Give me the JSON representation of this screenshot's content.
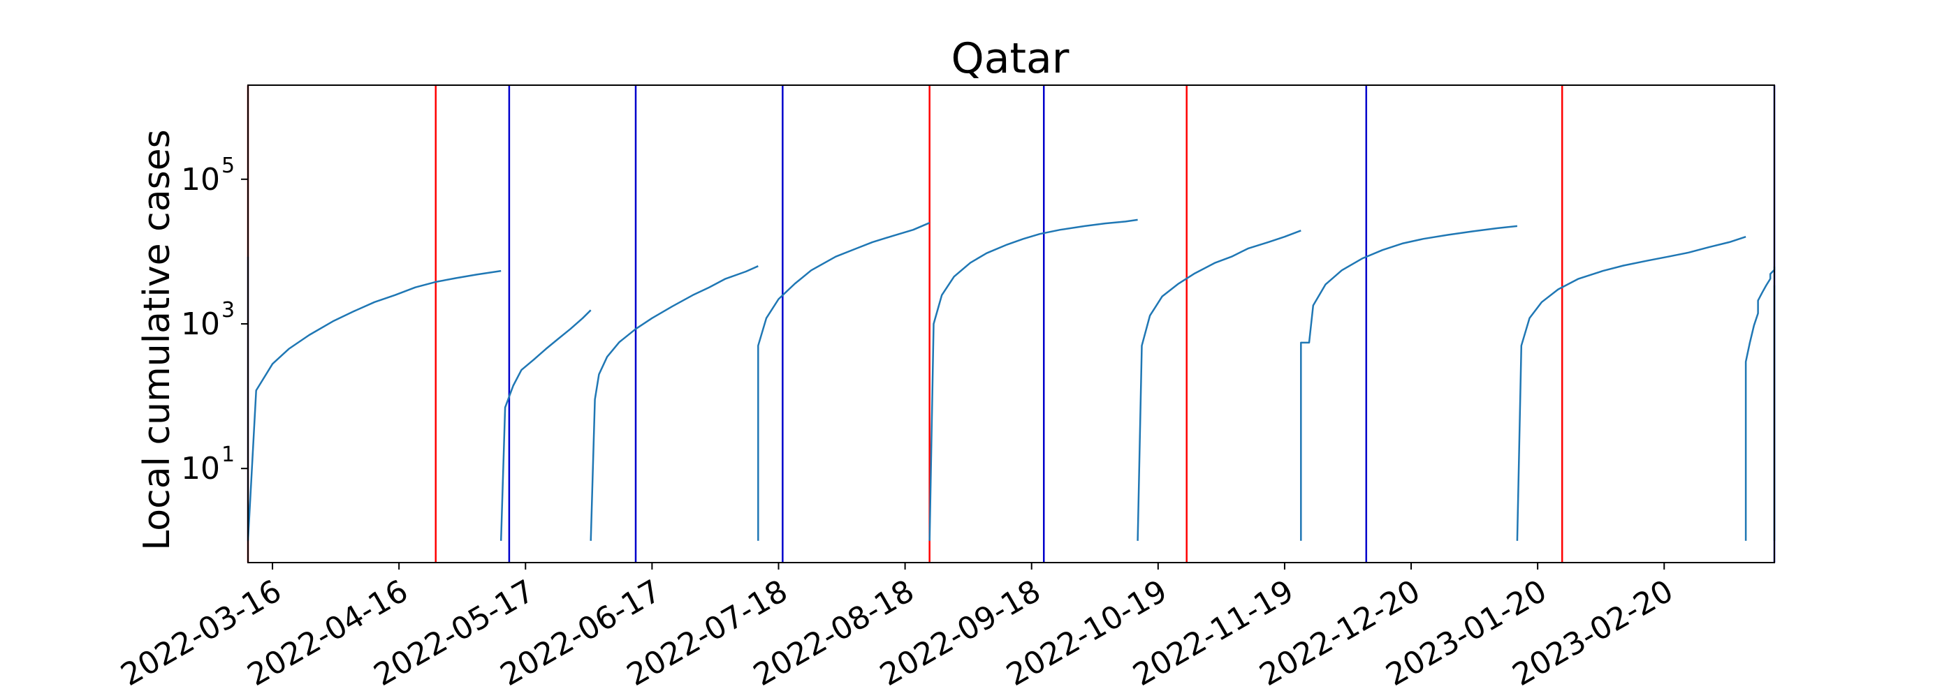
{
  "chart_data": {
    "type": "line",
    "title": "Qatar",
    "xlabel": "",
    "ylabel": "Local cumulative cases",
    "yscale": "log",
    "ylim": [
      0.5,
      2000000
    ],
    "xlim": [
      "2022-03-10",
      "2023-03-19"
    ],
    "xticks": [
      "2022-03-16",
      "2022-04-16",
      "2022-05-17",
      "2022-06-17",
      "2022-07-18",
      "2022-08-18",
      "2022-09-18",
      "2022-10-19",
      "2022-11-19",
      "2022-12-20",
      "2023-01-20",
      "2023-02-20"
    ],
    "yticks": [
      {
        "value": 10,
        "base": "10",
        "exp": "1"
      },
      {
        "value": 1000,
        "base": "10",
        "exp": "3"
      },
      {
        "value": 100000,
        "base": "10",
        "exp": "5"
      }
    ],
    "grid": false,
    "colors": {
      "series": "#1f77b4",
      "red_marker": "#ff0000",
      "blue_marker": "#0000cc",
      "frame": "#000000"
    },
    "vertical_markers": [
      {
        "date": "2022-03-10",
        "color": "red"
      },
      {
        "date": "2022-04-25",
        "color": "red"
      },
      {
        "date": "2022-05-13",
        "color": "blue"
      },
      {
        "date": "2022-06-13",
        "color": "blue"
      },
      {
        "date": "2022-07-19",
        "color": "blue"
      },
      {
        "date": "2022-08-24",
        "color": "red"
      },
      {
        "date": "2022-09-21",
        "color": "blue"
      },
      {
        "date": "2022-10-26",
        "color": "red"
      },
      {
        "date": "2022-12-09",
        "color": "blue"
      },
      {
        "date": "2023-01-26",
        "color": "red"
      },
      {
        "date": "2023-03-19",
        "color": "blue"
      }
    ],
    "series": [
      {
        "points": [
          [
            "2022-03-10",
            8500
          ],
          [
            "2022-03-10",
            1
          ],
          [
            "2022-03-12",
            120
          ],
          [
            "2022-03-16",
            280
          ],
          [
            "2022-03-20",
            450
          ],
          [
            "2022-03-25",
            700
          ],
          [
            "2022-03-31",
            1100
          ],
          [
            "2022-04-05",
            1500
          ],
          [
            "2022-04-10",
            2000
          ],
          [
            "2022-04-15",
            2500
          ],
          [
            "2022-04-20",
            3200
          ],
          [
            "2022-04-25",
            3800
          ],
          [
            "2022-04-30",
            4300
          ],
          [
            "2022-05-05",
            4800
          ],
          [
            "2022-05-11",
            5400
          ]
        ]
      },
      {
        "points": [
          [
            "2022-05-11",
            1
          ],
          [
            "2022-05-12",
            70
          ],
          [
            "2022-05-14",
            140
          ],
          [
            "2022-05-16",
            230
          ],
          [
            "2022-05-19",
            320
          ],
          [
            "2022-05-22",
            450
          ],
          [
            "2022-05-25",
            620
          ],
          [
            "2022-05-28",
            850
          ],
          [
            "2022-05-31",
            1200
          ],
          [
            "2022-06-02",
            1550
          ]
        ]
      },
      {
        "points": [
          [
            "2022-06-02",
            1
          ],
          [
            "2022-06-03",
            90
          ],
          [
            "2022-06-04",
            200
          ],
          [
            "2022-06-06",
            350
          ],
          [
            "2022-06-09",
            560
          ],
          [
            "2022-06-13",
            850
          ],
          [
            "2022-06-17",
            1200
          ],
          [
            "2022-06-22",
            1750
          ],
          [
            "2022-06-27",
            2500
          ],
          [
            "2022-07-01",
            3200
          ],
          [
            "2022-07-05",
            4200
          ],
          [
            "2022-07-10",
            5300
          ],
          [
            "2022-07-13",
            6300
          ]
        ]
      },
      {
        "points": [
          [
            "2022-07-13",
            1
          ],
          [
            "2022-07-13",
            500
          ],
          [
            "2022-07-15",
            1200
          ],
          [
            "2022-07-18",
            2200
          ],
          [
            "2022-07-22",
            3600
          ],
          [
            "2022-07-26",
            5500
          ],
          [
            "2022-08-01",
            8500
          ],
          [
            "2022-08-06",
            11000
          ],
          [
            "2022-08-10",
            13500
          ],
          [
            "2022-08-15",
            16500
          ],
          [
            "2022-08-20",
            20000
          ],
          [
            "2022-08-24",
            25000
          ]
        ]
      },
      {
        "points": [
          [
            "2022-08-24",
            1
          ],
          [
            "2022-08-25",
            1000
          ],
          [
            "2022-08-27",
            2500
          ],
          [
            "2022-08-30",
            4500
          ],
          [
            "2022-09-03",
            7000
          ],
          [
            "2022-09-07",
            9500
          ],
          [
            "2022-09-12",
            12500
          ],
          [
            "2022-09-16",
            15000
          ],
          [
            "2022-09-20",
            17500
          ],
          [
            "2022-09-25",
            20000
          ],
          [
            "2022-10-01",
            22500
          ],
          [
            "2022-10-06",
            24500
          ],
          [
            "2022-10-11",
            26000
          ],
          [
            "2022-10-14",
            27500
          ]
        ]
      },
      {
        "points": [
          [
            "2022-10-14",
            1
          ],
          [
            "2022-10-15",
            500
          ],
          [
            "2022-10-17",
            1300
          ],
          [
            "2022-10-20",
            2400
          ],
          [
            "2022-10-24",
            3600
          ],
          [
            "2022-10-28",
            5000
          ],
          [
            "2022-11-02",
            7000
          ],
          [
            "2022-11-06",
            8500
          ],
          [
            "2022-11-10",
            11000
          ],
          [
            "2022-11-15",
            13500
          ],
          [
            "2022-11-19",
            16000
          ],
          [
            "2022-11-23",
            19500
          ]
        ]
      },
      {
        "points": [
          [
            "2022-11-23",
            1
          ],
          [
            "2022-11-23",
            550
          ],
          [
            "2022-11-25",
            550
          ],
          [
            "2022-11-26",
            1800
          ],
          [
            "2022-11-29",
            3500
          ],
          [
            "2022-12-03",
            5500
          ],
          [
            "2022-12-08",
            8000
          ],
          [
            "2022-12-13",
            10500
          ],
          [
            "2022-12-18",
            13000
          ],
          [
            "2022-12-23",
            15000
          ],
          [
            "2022-12-29",
            17000
          ],
          [
            "2023-01-04",
            19000
          ],
          [
            "2023-01-10",
            21000
          ],
          [
            "2023-01-15",
            22500
          ]
        ]
      },
      {
        "points": [
          [
            "2023-01-15",
            1
          ],
          [
            "2023-01-16",
            500
          ],
          [
            "2023-01-18",
            1200
          ],
          [
            "2023-01-21",
            2000
          ],
          [
            "2023-01-25",
            3000
          ],
          [
            "2023-01-30",
            4200
          ],
          [
            "2023-02-05",
            5400
          ],
          [
            "2023-02-10",
            6400
          ],
          [
            "2023-02-16",
            7500
          ],
          [
            "2023-02-21",
            8500
          ],
          [
            "2023-02-26",
            9700
          ],
          [
            "2023-03-03",
            11500
          ],
          [
            "2023-03-08",
            13500
          ],
          [
            "2023-03-12",
            16000
          ]
        ]
      },
      {
        "points": [
          [
            "2023-03-12",
            1
          ],
          [
            "2023-03-12",
            300
          ],
          [
            "2023-03-13",
            550
          ],
          [
            "2023-03-14",
            950
          ],
          [
            "2023-03-15",
            1400
          ],
          [
            "2023-03-15",
            2100
          ],
          [
            "2023-03-16",
            2700
          ],
          [
            "2023-03-17",
            3400
          ],
          [
            "2023-03-18",
            4200
          ],
          [
            "2023-03-18",
            4900
          ],
          [
            "2023-03-19",
            5600
          ],
          [
            "2023-03-19",
            6200
          ]
        ]
      },
      {
        "points": [
          [
            "2023-03-19",
            1
          ],
          [
            "2023-03-19",
            80
          ],
          [
            "2023-03-19",
            180
          ],
          [
            "2023-03-19",
            320
          ],
          [
            "2023-03-19",
            560
          ],
          [
            "2023-03-19",
            950
          ],
          [
            "2023-03-19",
            1300
          ],
          [
            "2023-03-19",
            1900
          ],
          [
            "2023-03-19",
            2500
          ],
          [
            "2023-03-19",
            3400
          ]
        ]
      }
    ]
  }
}
